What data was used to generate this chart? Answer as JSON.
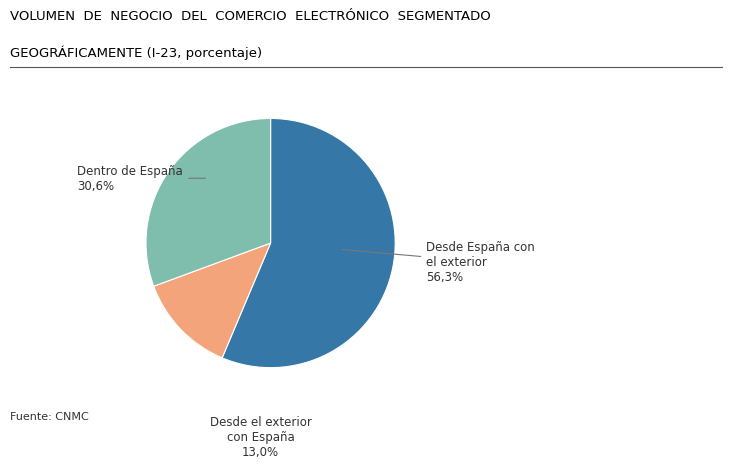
{
  "title_line1": "VOLUMEN  DE  NEGOCIO  DEL  COMERCIO  ELECTRÓNICO  SEGMENTADO",
  "title_line2": "GEOGRÁFICAMENTE (I-23, porcentaje)",
  "slices": [
    56.3,
    13.0,
    30.6
  ],
  "colors": [
    "#3578a8",
    "#f4a47a",
    "#7fbdad"
  ],
  "source": "Fuente: CNMC",
  "startangle": 90,
  "background_color": "#ffffff",
  "label1": "Desde España con\nel exterior\n56,3%",
  "label2": "Desde el exterior\ncon España\n13,0%",
  "label3": "Dentro de España\n30,6%"
}
